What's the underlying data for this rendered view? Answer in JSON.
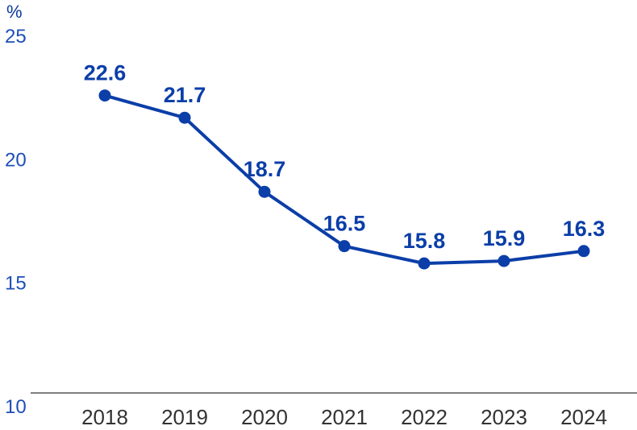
{
  "chart_data": {
    "type": "line",
    "unit_label": "%",
    "categories": [
      "2018",
      "2019",
      "2020",
      "2021",
      "2022",
      "2023",
      "2024"
    ],
    "series": [
      {
        "values": [
          22.6,
          21.7,
          18.7,
          16.5,
          15.8,
          15.9,
          16.3
        ]
      }
    ],
    "data_labels": [
      "22.6",
      "21.7",
      "18.7",
      "16.5",
      "15.8",
      "15.9",
      "16.3"
    ],
    "y_ticks": [
      "25",
      "20",
      "15",
      "10"
    ],
    "y_tick_values": [
      25,
      20,
      15,
      10
    ],
    "ylim": [
      10,
      25
    ],
    "grid": false,
    "colors": {
      "series": "#0b3ea8",
      "y_ticks": "#1e4fb8",
      "x_ticks": "#333333"
    }
  }
}
